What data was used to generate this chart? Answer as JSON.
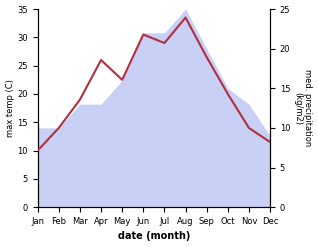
{
  "months": [
    "Jan",
    "Feb",
    "Mar",
    "Apr",
    "May",
    "Jun",
    "Jul",
    "Aug",
    "Sep",
    "Oct",
    "Nov",
    "Dec"
  ],
  "temp": [
    10.0,
    14.0,
    19.0,
    26.0,
    22.5,
    30.5,
    29.0,
    33.5,
    26.5,
    20.0,
    14.0,
    11.5
  ],
  "precip": [
    10.0,
    10.0,
    13.0,
    13.0,
    16.0,
    22.0,
    22.0,
    25.0,
    20.0,
    15.0,
    13.0,
    9.0
  ],
  "temp_color": "#b03040",
  "precip_fill_color": "#c8d0f5",
  "ylabel_left": "max temp (C)",
  "ylabel_right": "med. precipitation\n(kg/m2)",
  "xlabel": "date (month)",
  "ylim_left": [
    0,
    35
  ],
  "ylim_right": [
    0,
    25
  ],
  "yticks_left": [
    0,
    5,
    10,
    15,
    20,
    25,
    30,
    35
  ],
  "yticks_right": [
    0,
    5,
    10,
    15,
    20,
    25
  ],
  "bg_color": "#ffffff",
  "fig_bg": "#ffffff",
  "title_fontsize": 7,
  "axis_fontsize": 6,
  "tick_fontsize": 6,
  "xlabel_fontsize": 7
}
